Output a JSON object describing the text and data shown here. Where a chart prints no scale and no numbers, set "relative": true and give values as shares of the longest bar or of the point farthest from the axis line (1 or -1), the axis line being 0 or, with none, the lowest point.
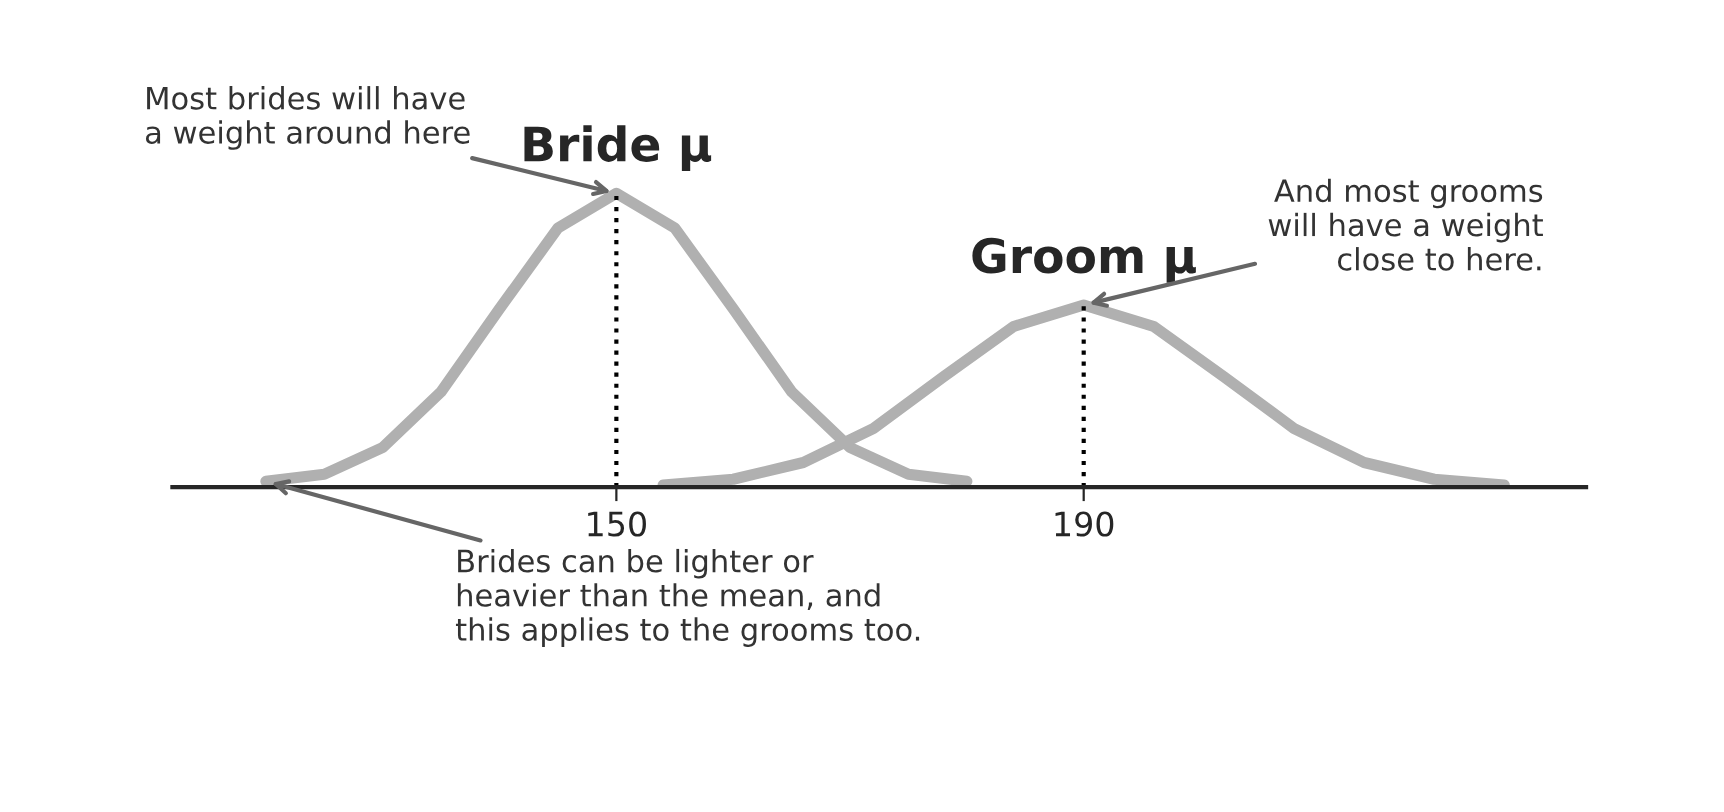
{
  "chart_data": {
    "type": "line",
    "relative": true,
    "xlim": [
      112,
      233
    ],
    "xticks": [
      150,
      190
    ],
    "grid": false,
    "marker": "none",
    "line_style": "solid",
    "series": [
      {
        "color": "#b0b0b0",
        "x": [
          120,
          125,
          130,
          135,
          140,
          145,
          150,
          155,
          160,
          165,
          170,
          175,
          180
        ],
        "values": [
          0.02,
          0.044,
          0.135,
          0.325,
          0.607,
          0.882,
          1,
          0.882,
          0.607,
          0.325,
          0.135,
          0.044,
          0.02
        ]
      },
      {
        "color": "#b0b0b0",
        "x": [
          154,
          160,
          166,
          172,
          178,
          184,
          190,
          196,
          202,
          208,
          214,
          220,
          226
        ],
        "values": [
          0.007,
          0.027,
          0.084,
          0.2,
          0.376,
          0.547,
          0.62,
          0.547,
          0.376,
          0.2,
          0.084,
          0.027,
          0.007
        ]
      }
    ],
    "ref_lines": [
      {
        "axis": "x",
        "value": 150,
        "label": "Bride μ",
        "line_style": "dotted",
        "color": "#000000"
      },
      {
        "axis": "x",
        "value": 190,
        "label": "Groom μ",
        "line_style": "dotted",
        "color": "#000000"
      }
    ],
    "annotations": [
      {
        "text": "Most brides will have\na weight around here",
        "x": 150,
        "y": 1
      },
      {
        "text": "And most grooms\nwill have a weight\nclose to here.",
        "x": 190,
        "y": 0.62
      },
      {
        "text": "Brides can be lighter or\nheavier than the mean, and\nthis applies to the grooms too.",
        "x": 120,
        "y": 0.02
      }
    ]
  }
}
